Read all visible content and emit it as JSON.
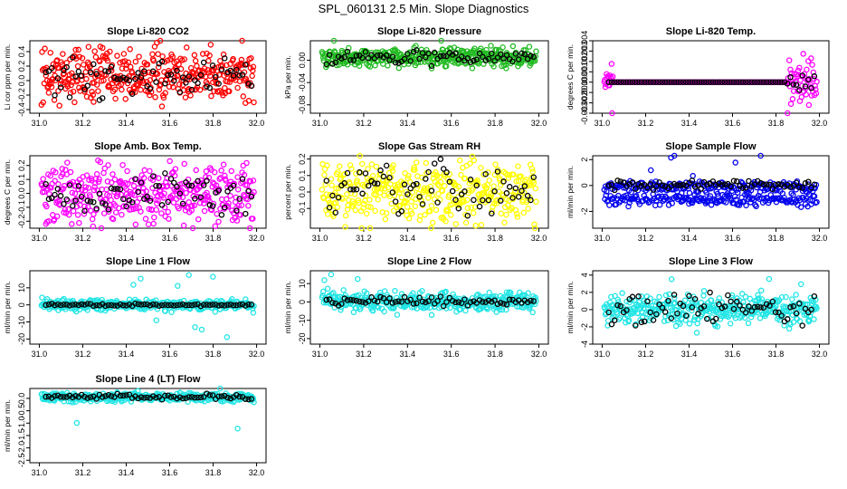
{
  "figure": {
    "title": "SPL_060131  2.5 Min. Slope Diagnostics"
  },
  "chart_data": [
    {
      "type": "scatter",
      "title": "Slope Li-820 CO2",
      "ylabel": "Li cor ppm per min.",
      "xlim": [
        31.0,
        32.0
      ],
      "ylim": [
        -0.45,
        0.55
      ],
      "x_ticks": [
        "31.0",
        "31.2",
        "31.4",
        "31.6",
        "31.8",
        "32.0"
      ],
      "y_ticks": [
        "-0.4",
        "-0.2",
        "0.0",
        "0.2",
        "0.4"
      ],
      "y_tick_values": [
        -0.4,
        -0.2,
        0.0,
        0.2,
        0.4
      ],
      "series": [
        {
          "name": "dense",
          "color": "#ff0000",
          "center": 0.07,
          "spread": 0.18
        },
        {
          "name": "sparse",
          "color": "#000000",
          "center": 0.05,
          "spread": 0.12
        }
      ]
    },
    {
      "type": "scatter",
      "title": "Slope Li-820 Pressure",
      "ylabel": "kPa per min.",
      "xlim": [
        31.0,
        32.0
      ],
      "ylim": [
        -0.095,
        0.035
      ],
      "x_ticks": [
        "31.0",
        "31.2",
        "31.4",
        "31.6",
        "31.8",
        "32.0"
      ],
      "y_ticks": [
        "-0.08",
        "-0.04",
        "0.00"
      ],
      "y_tick_values": [
        -0.08,
        -0.04,
        0.0
      ],
      "series": [
        {
          "name": "dense",
          "color": "#22bb22",
          "center": 0.005,
          "spread": 0.008
        },
        {
          "name": "sparse",
          "color": "#000000",
          "center": 0.005,
          "spread": 0.006
        }
      ]
    },
    {
      "type": "scatter",
      "title": "Slope Li-820 Temp.",
      "ylabel": "degrees C per min.",
      "xlim": [
        31.0,
        32.0
      ],
      "ylim": [
        -0.003,
        0.004
      ],
      "x_ticks": [
        "31.0",
        "31.2",
        "31.4",
        "31.6",
        "31.8",
        "32.0"
      ],
      "y_ticks": [
        "-0.003",
        "-0.002",
        "-0.001",
        "0.000",
        "0.001",
        "0.002",
        "0.003",
        "0.004"
      ],
      "y_tick_values": [
        -0.003,
        -0.002,
        -0.001,
        0.0,
        0.001,
        0.002,
        0.003,
        0.004
      ],
      "series": [
        {
          "name": "dense",
          "color": "#ff00ff",
          "center": 0.0,
          "spread": 0.0
        },
        {
          "name": "sparse",
          "color": "#000000",
          "center": 0.0,
          "spread": 0.0
        }
      ]
    },
    {
      "type": "scatter",
      "title": "Slope Amb. Box Temp.",
      "ylabel": "degrees C per min.",
      "xlim": [
        31.0,
        32.0
      ],
      "ylim": [
        -0.25,
        0.27
      ],
      "x_ticks": [
        "31.0",
        "31.2",
        "31.4",
        "31.6",
        "31.8",
        "32.0"
      ],
      "y_ticks": [
        "-0.2",
        "-0.1",
        "0.0",
        "0.1",
        "0.2"
      ],
      "y_tick_values": [
        -0.2,
        -0.1,
        0.0,
        0.1,
        0.2
      ],
      "series": [
        {
          "name": "dense",
          "color": "#ff00ff",
          "center": 0.0,
          "spread": 0.1
        },
        {
          "name": "sparse",
          "color": "#000000",
          "center": 0.0,
          "spread": 0.07
        }
      ]
    },
    {
      "type": "scatter",
      "title": "Slope Gas Stream RH",
      "ylabel": "percent per min.",
      "xlim": [
        31.0,
        32.0
      ],
      "ylim": [
        -0.22,
        0.22
      ],
      "x_ticks": [
        "31.0",
        "31.2",
        "31.4",
        "31.6",
        "31.8",
        "32.0"
      ],
      "y_ticks": [
        "-0.1",
        "0.0",
        "0.1",
        "0.2"
      ],
      "y_tick_values": [
        -0.1,
        0.0,
        0.1,
        0.2
      ],
      "series": [
        {
          "name": "dense",
          "color": "#ffff00",
          "center": 0.0,
          "spread": 0.09
        },
        {
          "name": "sparse",
          "color": "#000000",
          "center": 0.0,
          "spread": 0.07
        }
      ]
    },
    {
      "type": "scatter",
      "title": "Slope Sample Flow",
      "ylabel": "ml/min per min.",
      "xlim": [
        31.0,
        32.0
      ],
      "ylim": [
        -3.3,
        2.3
      ],
      "x_ticks": [
        "31.0",
        "31.2",
        "31.4",
        "31.6",
        "31.8",
        "32.0"
      ],
      "y_ticks": [
        "-2",
        "0",
        "2"
      ],
      "y_tick_values": [
        -2,
        0,
        2
      ],
      "series": [
        {
          "name": "dense",
          "color": "#0000ee",
          "center": -0.5,
          "spread": 0.5
        },
        {
          "name": "sparse",
          "color": "#000000",
          "center": 0.0,
          "spread": 0.2
        }
      ]
    },
    {
      "type": "scatter",
      "title": "Slope Line 1 Flow",
      "ylabel": "ml/min per min.",
      "xlim": [
        31.0,
        32.0
      ],
      "ylim": [
        -23,
        20
      ],
      "x_ticks": [
        "31.0",
        "31.2",
        "31.4",
        "31.6",
        "31.8",
        "32.0"
      ],
      "y_ticks": [
        "-20",
        "-10",
        "0",
        "10"
      ],
      "y_tick_values": [
        -20,
        -10,
        0,
        10
      ],
      "series": [
        {
          "name": "dense",
          "color": "#22e5e5",
          "center": 0.0,
          "spread": 1.5
        },
        {
          "name": "sparse",
          "color": "#000000",
          "center": 0.0,
          "spread": 0.3
        }
      ]
    },
    {
      "type": "scatter",
      "title": "Slope Line 2 Flow",
      "ylabel": "ml/min per min.",
      "xlim": [
        31.0,
        32.0
      ],
      "ylim": [
        -23,
        17
      ],
      "x_ticks": [
        "31.0",
        "31.2",
        "31.4",
        "31.6",
        "31.8",
        "32.0"
      ],
      "y_ticks": [
        "-20",
        "-10",
        "0",
        "10"
      ],
      "y_tick_values": [
        -20,
        -10,
        0,
        10
      ],
      "series": [
        {
          "name": "dense",
          "color": "#22e5e5",
          "center": 0.0,
          "spread": 2.5
        },
        {
          "name": "sparse",
          "color": "#000000",
          "center": 0.5,
          "spread": 1.0
        }
      ]
    },
    {
      "type": "scatter",
      "title": "Slope Line 3 Flow",
      "ylabel": "ml/min per min.",
      "xlim": [
        31.0,
        32.0
      ],
      "ylim": [
        -4.0,
        4.5
      ],
      "x_ticks": [
        "31.0",
        "31.2",
        "31.4",
        "31.6",
        "31.8",
        "32.0"
      ],
      "y_ticks": [
        "-4",
        "-2",
        "0",
        "2",
        "4"
      ],
      "y_tick_values": [
        -4,
        -2,
        0,
        2,
        4
      ],
      "series": [
        {
          "name": "dense",
          "color": "#22e5e5",
          "center": 0.0,
          "spread": 0.8
        },
        {
          "name": "sparse",
          "color": "#000000",
          "center": 0.0,
          "spread": 0.9
        }
      ]
    },
    {
      "type": "scatter",
      "title": "Slope Line 4 (LT) Flow",
      "ylabel": "ml/min per min.",
      "xlim": [
        31.0,
        32.0
      ],
      "ylim": [
        -2.6,
        0.4
      ],
      "x_ticks": [
        "31.0",
        "31.2",
        "31.4",
        "31.6",
        "31.8",
        "32.0"
      ],
      "y_ticks": [
        "-2.5",
        "-2.0",
        "-1.5",
        "-1.0",
        "-0.5",
        "0.0"
      ],
      "y_tick_values": [
        -2.5,
        -2.0,
        -1.5,
        -1.0,
        -0.5,
        0.0
      ],
      "series": [
        {
          "name": "dense",
          "color": "#22e5e5",
          "center": 0.05,
          "spread": 0.08
        },
        {
          "name": "sparse",
          "color": "#000000",
          "center": 0.05,
          "spread": 0.05
        }
      ]
    }
  ]
}
